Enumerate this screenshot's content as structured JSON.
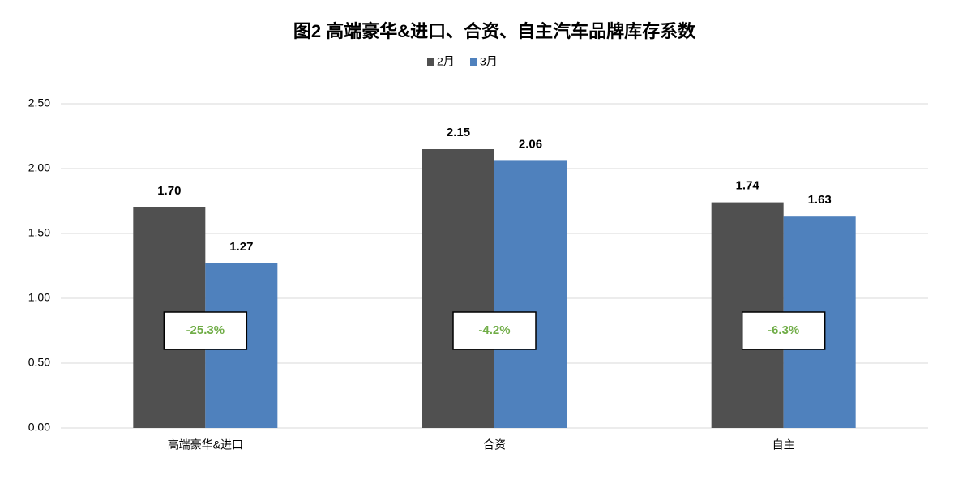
{
  "chart_data": {
    "type": "bar",
    "title": "图2  高端豪华&进口、合资、自主汽车品牌库存系数",
    "categories": [
      "高端豪华&进口",
      "合资",
      "自主"
    ],
    "series": [
      {
        "name": "2月",
        "color": "#505050",
        "values": [
          1.7,
          2.15,
          1.74
        ],
        "value_labels": [
          "1.70",
          "2.15",
          "1.74"
        ]
      },
      {
        "name": "3月",
        "color": "#4f81bd",
        "values": [
          1.27,
          2.06,
          1.63
        ],
        "value_labels": [
          "1.27",
          "2.06",
          "1.63"
        ]
      }
    ],
    "annotations": [
      "-25.3%",
      "-4.2%",
      "-6.3%"
    ],
    "ylim": [
      0,
      2.5
    ],
    "yticks": [
      {
        "value": 0,
        "label": "0.00"
      },
      {
        "value": 0.5,
        "label": "0.50"
      },
      {
        "value": 1,
        "label": "1.00"
      },
      {
        "value": 1.5,
        "label": "1.50"
      },
      {
        "value": 2,
        "label": "2.00"
      },
      {
        "value": 2.5,
        "label": "2.50"
      }
    ],
    "grid": true,
    "legend": "top"
  }
}
